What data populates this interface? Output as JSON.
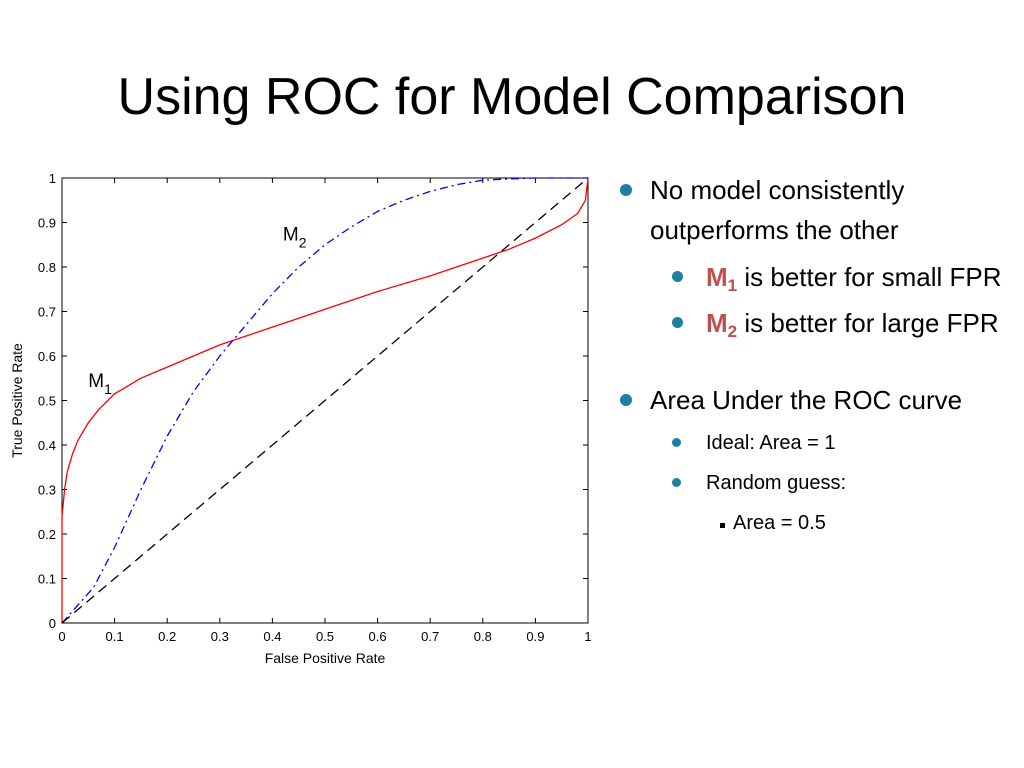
{
  "slide": {
    "title": "Using ROC for Model Comparison"
  },
  "bullets": {
    "b1_text": "No model consistently outperforms the other",
    "m1": {
      "letter": "M",
      "sub": "1",
      "rest": " is better for small FPR"
    },
    "m2": {
      "letter": "M",
      "sub": "2",
      "rest": " is better for large FPR"
    },
    "b2_text": "Area Under the ROC curve",
    "ideal": "Ideal:  Area = 1",
    "random": "Random guess:",
    "random_area": "Area = 0.5",
    "bullet_color": "#1f7fa3",
    "model_color": "#c0504d"
  },
  "chart_data": {
    "type": "line",
    "xlabel": "False Positive Rate",
    "ylabel": "True Positive Rate",
    "xlim": [
      0,
      1
    ],
    "ylim": [
      0,
      1
    ],
    "xticks": [
      0,
      0.1,
      0.2,
      0.3,
      0.4,
      0.5,
      0.6,
      0.7,
      0.8,
      0.9,
      1
    ],
    "yticks": [
      0,
      0.1,
      0.2,
      0.3,
      0.4,
      0.5,
      0.6,
      0.7,
      0.8,
      0.9,
      1
    ],
    "grid": false,
    "series": [
      {
        "name": "M1",
        "label_main": "M",
        "label_sub": "1",
        "color": "#ff0000",
        "style": "solid",
        "label_at": [
          0.05,
          0.53
        ],
        "x": [
          0,
          0,
          0.005,
          0.01,
          0.02,
          0.03,
          0.05,
          0.07,
          0.1,
          0.15,
          0.2,
          0.25,
          0.3,
          0.35,
          0.4,
          0.45,
          0.5,
          0.6,
          0.7,
          0.8,
          0.85,
          0.9,
          0.95,
          0.98,
          0.995,
          1
        ],
        "y": [
          0,
          0.24,
          0.3,
          0.34,
          0.38,
          0.41,
          0.45,
          0.48,
          0.515,
          0.55,
          0.575,
          0.6,
          0.625,
          0.645,
          0.665,
          0.685,
          0.705,
          0.745,
          0.78,
          0.82,
          0.84,
          0.865,
          0.895,
          0.92,
          0.95,
          1
        ]
      },
      {
        "name": "M2",
        "label_main": "M",
        "label_sub": "2",
        "color": "#0000ff",
        "style": "dashdot",
        "label_at": [
          0.42,
          0.86
        ],
        "x": [
          0,
          0.03,
          0.06,
          0.1,
          0.15,
          0.2,
          0.25,
          0.3,
          0.35,
          0.4,
          0.45,
          0.5,
          0.55,
          0.6,
          0.65,
          0.7,
          0.75,
          0.8,
          0.85,
          0.9,
          0.95,
          1
        ],
        "y": [
          0,
          0.04,
          0.08,
          0.17,
          0.3,
          0.42,
          0.52,
          0.6,
          0.67,
          0.74,
          0.8,
          0.85,
          0.89,
          0.925,
          0.95,
          0.97,
          0.985,
          0.995,
          0.998,
          1,
          1,
          1
        ]
      },
      {
        "name": "random",
        "color": "#000000",
        "style": "dashed",
        "x": [
          0,
          1
        ],
        "y": [
          0,
          1
        ]
      }
    ]
  }
}
